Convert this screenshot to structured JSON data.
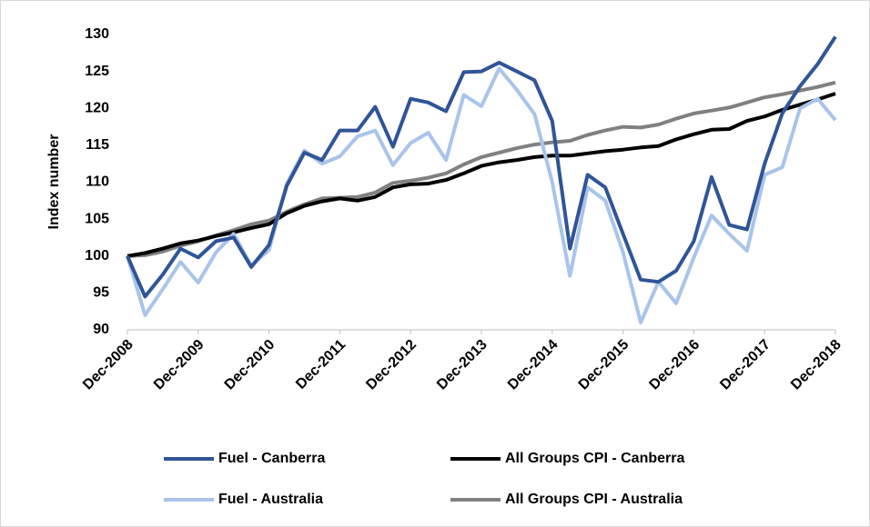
{
  "chart_data": {
    "type": "line",
    "y_label": "Index number",
    "categories": [
      "Dec-2008",
      null,
      null,
      null,
      "Dec-2009",
      null,
      null,
      null,
      "Dec-2010",
      null,
      null,
      null,
      "Dec-2011",
      null,
      null,
      null,
      "Dec-2012",
      null,
      null,
      null,
      "Dec-2013",
      null,
      null,
      null,
      "Dec-2014",
      null,
      null,
      null,
      "Dec-2015",
      null,
      null,
      null,
      "Dec-2016",
      null,
      null,
      null,
      "Dec-2017",
      null,
      null,
      null,
      "Dec-2018"
    ],
    "series": [
      {
        "name": "Fuel - Canberra",
        "color": "#2f5597",
        "values": [
          100,
          94.5,
          97.5,
          101,
          99.8,
          102,
          102.5,
          98.5,
          101.5,
          109.5,
          114,
          113,
          117,
          117,
          120.2,
          114.8,
          121.3,
          120.8,
          119.6,
          124.9,
          125,
          126.2,
          125,
          123.8,
          118.3,
          101,
          111,
          109.3,
          103,
          96.8,
          96.5,
          98,
          102,
          110.7,
          104.2,
          103.6,
          112.5,
          119.3,
          123,
          126,
          129.7
        ]
      },
      {
        "name": "All Groups CPI - Canberra",
        "color": "#000000",
        "values": [
          100,
          100.4,
          101,
          101.7,
          102.1,
          102.7,
          103.2,
          103.8,
          104.3,
          105.8,
          106.8,
          107.4,
          107.8,
          107.5,
          108,
          109.3,
          109.7,
          109.8,
          110.3,
          111.2,
          112.2,
          112.7,
          113,
          113.4,
          113.6,
          113.6,
          113.9,
          114.2,
          114.4,
          114.7,
          114.9,
          115.8,
          116.5,
          117.1,
          117.2,
          118.3,
          118.9,
          119.8,
          120.5,
          121.2,
          122
        ]
      },
      {
        "name": "Fuel - Australia",
        "color": "#a9c4ea",
        "values": [
          100,
          92,
          95.5,
          99.2,
          96.4,
          100.5,
          103,
          98.7,
          100.8,
          109.8,
          114.3,
          112.5,
          113.5,
          116.2,
          117,
          112.3,
          115.3,
          116.7,
          113,
          121.8,
          120.3,
          125.4,
          122.5,
          119.2,
          110,
          97.3,
          109.3,
          107.5,
          100.5,
          91,
          96.5,
          93.6,
          99.8,
          105.5,
          103,
          100.7,
          111,
          112,
          120,
          121.3,
          118.4
        ]
      },
      {
        "name": "All Groups CPI - Australia",
        "color": "#808080",
        "values": [
          100,
          100.1,
          100.6,
          101.4,
          102,
          102.8,
          103.5,
          104.3,
          104.8,
          106,
          107,
          107.8,
          107.9,
          108,
          108.6,
          109.9,
          110.2,
          110.6,
          111.2,
          112.4,
          113.4,
          114,
          114.6,
          115.1,
          115.4,
          115.6,
          116.4,
          117,
          117.5,
          117.4,
          117.8,
          118.6,
          119.3,
          119.7,
          120.1,
          120.8,
          121.5,
          121.9,
          122.4,
          122.9,
          123.5
        ]
      }
    ],
    "ylim": [
      90,
      130
    ],
    "yticks": [
      90,
      95,
      100,
      105,
      110,
      115,
      120,
      125,
      130
    ],
    "legend": "bottom"
  }
}
